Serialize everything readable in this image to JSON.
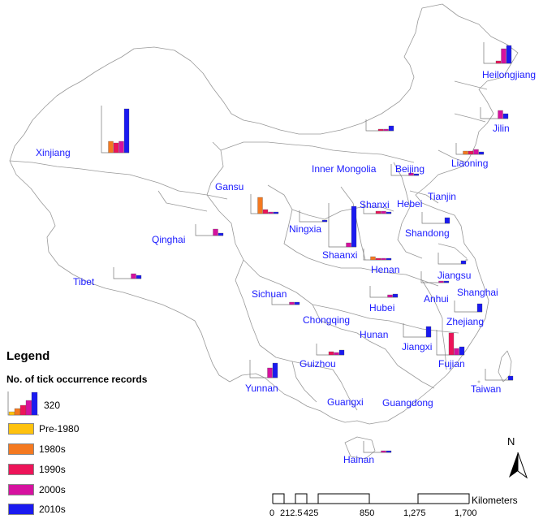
{
  "legend": {
    "title": "Legend",
    "subtitle": "No. of tick occurrence records",
    "max_value": "320",
    "items": [
      {
        "label": "Pre-1980",
        "color": "#FFC20E"
      },
      {
        "label": "1980s",
        "color": "#F47920"
      },
      {
        "label": "1990s",
        "color": "#ED1459"
      },
      {
        "label": "2000s",
        "color": "#D6119F"
      },
      {
        "label": "2010s",
        "color": "#1A1AF0"
      }
    ]
  },
  "north_label": "N",
  "scale": {
    "unit": "Kilometers",
    "ticks": [
      "0",
      "212.5",
      "425",
      "850",
      "1,275",
      "1,700"
    ]
  },
  "provinces": [
    {
      "name": "Heilongjiang"
    },
    {
      "name": "Jilin"
    },
    {
      "name": "Liaoning"
    },
    {
      "name": "Inner Mongolia"
    },
    {
      "name": "Beijing"
    },
    {
      "name": "Tianjin"
    },
    {
      "name": "Hebei"
    },
    {
      "name": "Shanxi"
    },
    {
      "name": "Shandong"
    },
    {
      "name": "Xinjiang"
    },
    {
      "name": "Gansu"
    },
    {
      "name": "Ningxia"
    },
    {
      "name": "Qinghai"
    },
    {
      "name": "Shaanxi"
    },
    {
      "name": "Henan"
    },
    {
      "name": "Jiangsu"
    },
    {
      "name": "Shanghai"
    },
    {
      "name": "Anhui"
    },
    {
      "name": "Tibet"
    },
    {
      "name": "Sichuan"
    },
    {
      "name": "Chongqing"
    },
    {
      "name": "Hubei"
    },
    {
      "name": "Zhejiang"
    },
    {
      "name": "Hunan"
    },
    {
      "name": "Jiangxi"
    },
    {
      "name": "Fujian"
    },
    {
      "name": "Guizhou"
    },
    {
      "name": "Yunnan"
    },
    {
      "name": "Taiwan"
    },
    {
      "name": "Guangxi"
    },
    {
      "name": "Guangdong"
    },
    {
      "name": "Hainan"
    }
  ]
}
